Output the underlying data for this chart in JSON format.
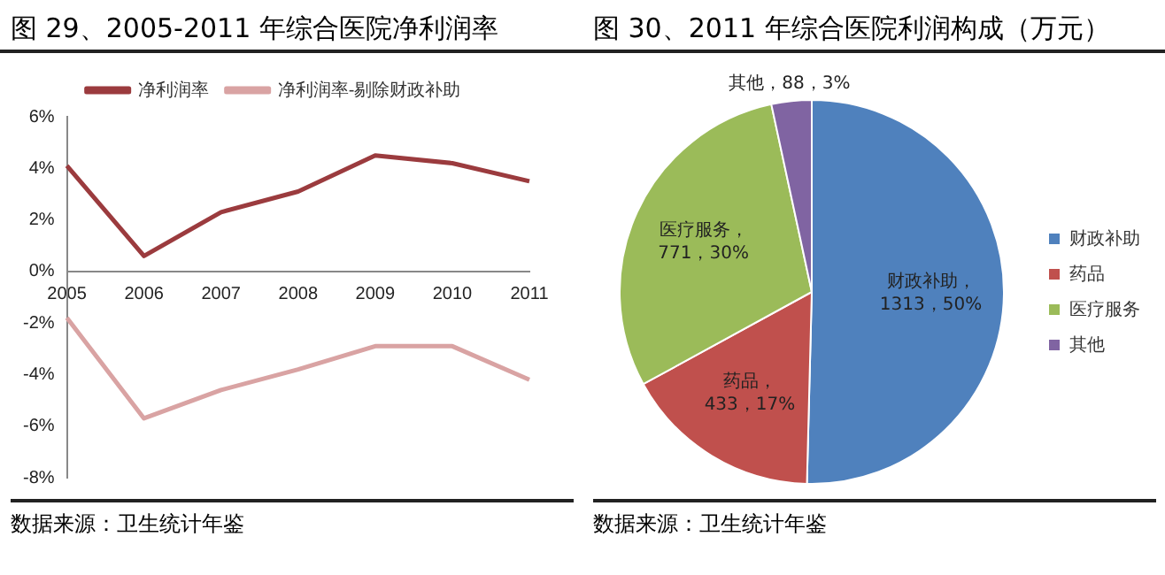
{
  "chart_data": [
    {
      "type": "line",
      "title": "图 29、2005-2011 年综合医院净利润率",
      "categories": [
        "2005",
        "2006",
        "2007",
        "2008",
        "2009",
        "2010",
        "2011"
      ],
      "series": [
        {
          "name": "净利润率",
          "color": "#9b3b3e",
          "values": [
            4.1,
            0.6,
            2.3,
            3.1,
            4.5,
            4.2,
            3.5
          ]
        },
        {
          "name": "净利润率-剔除财政补助",
          "color": "#d9a3a3",
          "values": [
            -1.8,
            -5.7,
            -4.6,
            -3.8,
            -2.9,
            -2.9,
            -4.2
          ]
        }
      ],
      "ylim": [
        -8,
        6
      ],
      "yticks": [
        {
          "value": -8,
          "label": "-8%"
        },
        {
          "value": -6,
          "label": "-6%"
        },
        {
          "value": -4,
          "label": "-4%"
        },
        {
          "value": -2,
          "label": "-2%"
        },
        {
          "value": 0,
          "label": "0%"
        },
        {
          "value": 2,
          "label": "2%"
        },
        {
          "value": 4,
          "label": "4%"
        },
        {
          "value": 6,
          "label": "6%"
        }
      ],
      "grid": false,
      "legend": "top",
      "marker": "none",
      "line_style": "solid",
      "annotations": [
        "数据来源：卫生统计年鉴"
      ]
    },
    {
      "type": "pie",
      "title": "图 30、2011 年综合医院利润构成（万元）",
      "categories": [
        "财政补助",
        "药品",
        "医疗服务",
        "其他"
      ],
      "values": [
        1313,
        433,
        771,
        88
      ],
      "colors": [
        "#4f81bd",
        "#c0504d",
        "#9bbb59",
        "#8064a2"
      ],
      "value_labels": [
        "财政补助，1313，50%",
        "药品，433，17%",
        "医疗服务，771，30%",
        "其他，88，3%"
      ],
      "legend": "right",
      "annotations": [
        "数据来源：卫生统计年鉴"
      ]
    }
  ]
}
